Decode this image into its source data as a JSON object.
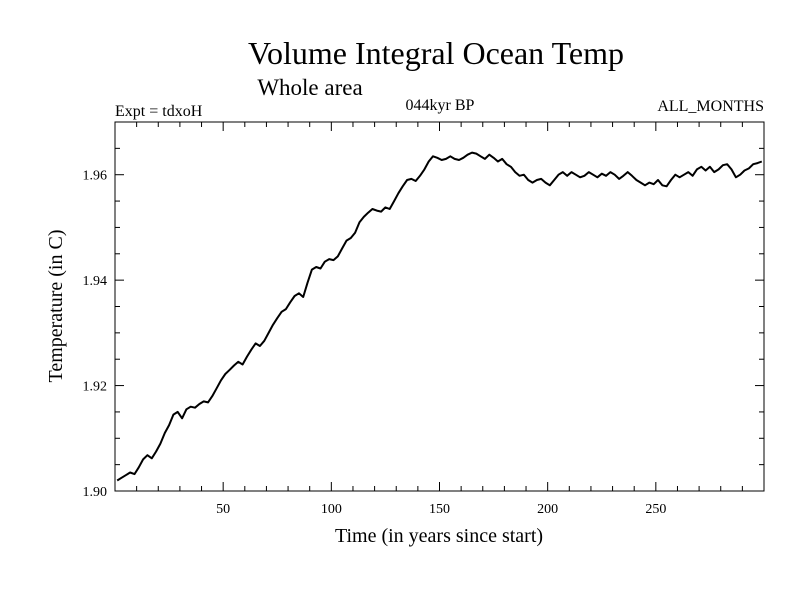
{
  "chart_data": {
    "type": "line",
    "title": "Volume Integral Ocean Temp",
    "subtitle": "Whole area",
    "annotations": {
      "experiment": "Expt = tdxoH",
      "period": "044kyr BP",
      "months": "ALL_MONTHS"
    },
    "xlabel": "Time (in years since start)",
    "ylabel": "Temperature (in C)",
    "xlim": [
      0,
      300
    ],
    "ylim": [
      1.9,
      1.97
    ],
    "xticks": [
      50,
      100,
      150,
      200,
      250
    ],
    "xtick_labels": [
      "50",
      "100",
      "150",
      "200",
      "250"
    ],
    "yticks": [
      1.9,
      1.92,
      1.94,
      1.96
    ],
    "ytick_labels": [
      "1.90",
      "1.92",
      "1.94",
      "1.96"
    ],
    "grid": false,
    "line_color": "#000000",
    "series": [
      {
        "x": [
          1,
          3,
          5,
          7,
          9,
          11,
          13,
          15,
          17,
          19,
          21,
          23,
          25,
          27,
          29,
          31,
          33,
          35,
          37,
          39,
          41,
          43,
          45,
          47,
          49,
          51,
          53,
          55,
          57,
          59,
          61,
          63,
          65,
          67,
          69,
          71,
          73,
          75,
          77,
          79,
          81,
          83,
          85,
          87,
          89,
          91,
          93,
          95,
          97,
          99,
          101,
          103,
          105,
          107,
          109,
          111,
          113,
          115,
          117,
          119,
          121,
          123,
          125,
          127,
          129,
          131,
          133,
          135,
          137,
          139,
          141,
          143,
          145,
          147,
          149,
          151,
          153,
          155,
          157,
          159,
          161,
          163,
          165,
          167,
          169,
          171,
          173,
          175,
          177,
          179,
          181,
          183,
          185,
          187,
          189,
          191,
          193,
          195,
          197,
          199,
          201,
          203,
          205,
          207,
          209,
          211,
          213,
          215,
          217,
          219,
          221,
          223,
          225,
          227,
          229,
          231,
          233,
          235,
          237,
          239,
          241,
          243,
          245,
          247,
          249,
          251,
          253,
          255,
          257,
          259,
          261,
          263,
          265,
          267,
          269,
          271,
          273,
          275,
          277,
          279,
          281,
          283,
          285,
          287,
          289,
          291,
          293,
          295,
          297,
          299
        ],
        "values": [
          1.902,
          1.9025,
          1.903,
          1.9035,
          1.9032,
          1.9045,
          1.906,
          1.9068,
          1.9062,
          1.9075,
          1.909,
          1.911,
          1.9125,
          1.9145,
          1.915,
          1.9138,
          1.9155,
          1.916,
          1.9158,
          1.9165,
          1.917,
          1.9168,
          1.918,
          1.9195,
          1.921,
          1.9222,
          1.923,
          1.9238,
          1.9245,
          1.924,
          1.9255,
          1.9268,
          1.928,
          1.9275,
          1.9285,
          1.93,
          1.9315,
          1.9328,
          1.934,
          1.9345,
          1.9358,
          1.937,
          1.9375,
          1.9368,
          1.9395,
          1.942,
          1.9425,
          1.9422,
          1.9435,
          1.944,
          1.9438,
          1.9445,
          1.946,
          1.9475,
          1.948,
          1.949,
          1.951,
          1.952,
          1.9528,
          1.9535,
          1.9532,
          1.953,
          1.9538,
          1.9535,
          1.955,
          1.9565,
          1.9578,
          1.959,
          1.9592,
          1.9588,
          1.9598,
          1.961,
          1.9625,
          1.9635,
          1.9632,
          1.9628,
          1.963,
          1.9635,
          1.963,
          1.9628,
          1.9632,
          1.9638,
          1.9642,
          1.964,
          1.9635,
          1.963,
          1.9638,
          1.9632,
          1.9625,
          1.963,
          1.962,
          1.9615,
          1.9605,
          1.9598,
          1.96,
          1.959,
          1.9585,
          1.959,
          1.9592,
          1.9585,
          1.958,
          1.959,
          1.96,
          1.9605,
          1.9598,
          1.9605,
          1.96,
          1.9595,
          1.9598,
          1.9605,
          1.96,
          1.9595,
          1.9602,
          1.9598,
          1.9605,
          1.96,
          1.9592,
          1.9598,
          1.9605,
          1.9598,
          1.959,
          1.9585,
          1.958,
          1.9585,
          1.9582,
          1.959,
          1.958,
          1.9578,
          1.959,
          1.96,
          1.9595,
          1.96,
          1.9605,
          1.9598,
          1.961,
          1.9615,
          1.9608,
          1.9615,
          1.9605,
          1.961,
          1.9618,
          1.962,
          1.961,
          1.9595,
          1.96,
          1.9608,
          1.9612,
          1.962,
          1.9622,
          1.9625
        ]
      }
    ]
  }
}
